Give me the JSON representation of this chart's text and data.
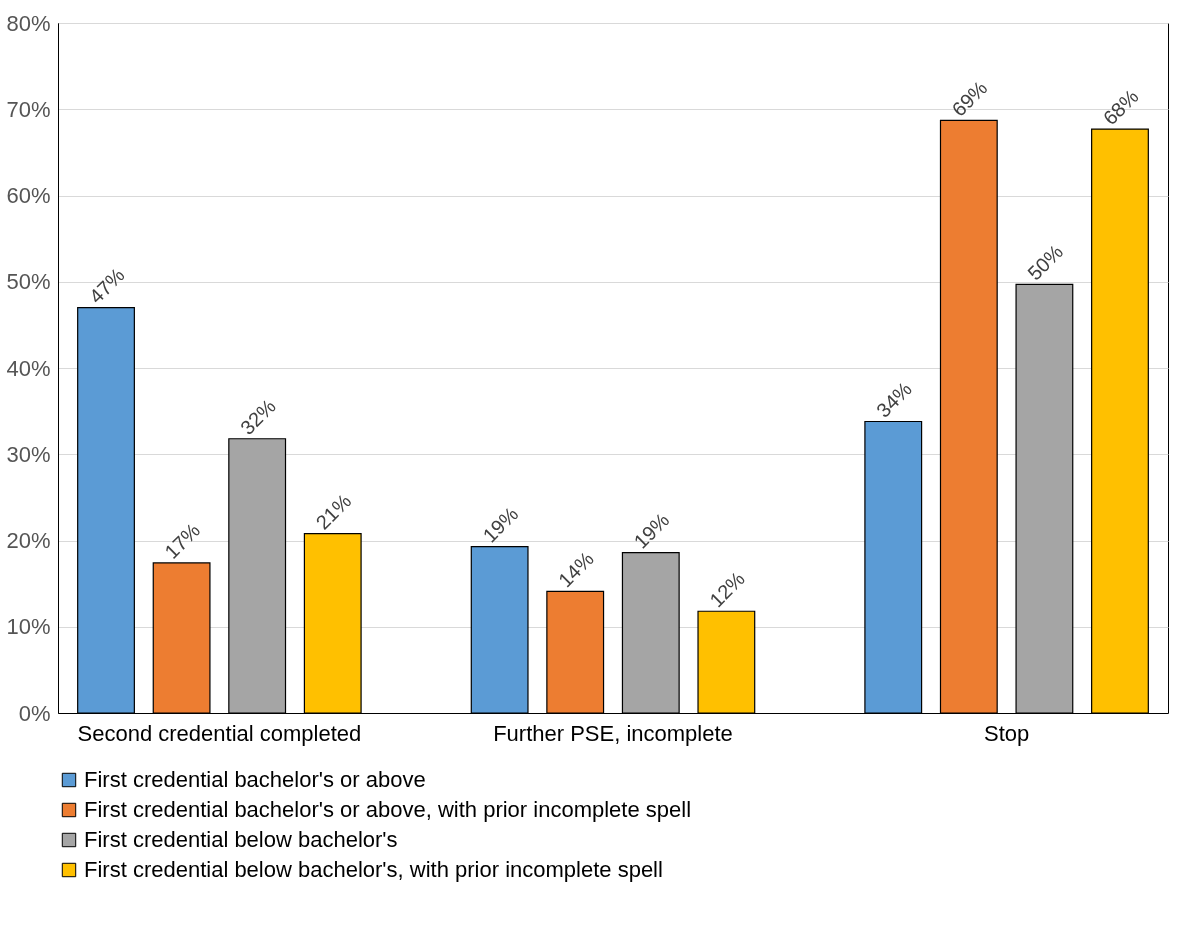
{
  "chart_data": {
    "type": "bar",
    "categories": [
      "Second credential completed",
      "Further PSE, incomplete",
      "Stop"
    ],
    "series": [
      {
        "name": "First credential bachelor's or above",
        "color": "#5b9bd5",
        "values": [
          47.0,
          19.3,
          33.8
        ],
        "value_labels": [
          "47%",
          "19%",
          "34%"
        ]
      },
      {
        "name": "First credential bachelor's or above, with prior incomplete spell",
        "color": "#ed7d31",
        "values": [
          17.4,
          14.1,
          68.7
        ],
        "value_labels": [
          "17%",
          "14%",
          "69%"
        ]
      },
      {
        "name": "First credential below bachelor's",
        "color": "#a5a5a5",
        "values": [
          31.8,
          18.6,
          49.7
        ],
        "value_labels": [
          "32%",
          "19%",
          "50%"
        ]
      },
      {
        "name": "First credential below bachelor's, with prior incomplete spell",
        "color": "#ffc000",
        "values": [
          20.8,
          11.8,
          67.7
        ],
        "value_labels": [
          "21%",
          "12%",
          "68%"
        ]
      }
    ],
    "ylim": [
      0,
      80
    ],
    "yticks": [
      {
        "value": 0,
        "label": "0%"
      },
      {
        "value": 10,
        "label": "10%"
      },
      {
        "value": 20,
        "label": "20%"
      },
      {
        "value": 30,
        "label": "30%"
      },
      {
        "value": 40,
        "label": "40%"
      },
      {
        "value": 50,
        "label": "50%"
      },
      {
        "value": 60,
        "label": "60%"
      },
      {
        "value": 70,
        "label": "70%"
      },
      {
        "value": 80,
        "label": "80%"
      }
    ],
    "grid": "y",
    "legend": "bottom"
  }
}
